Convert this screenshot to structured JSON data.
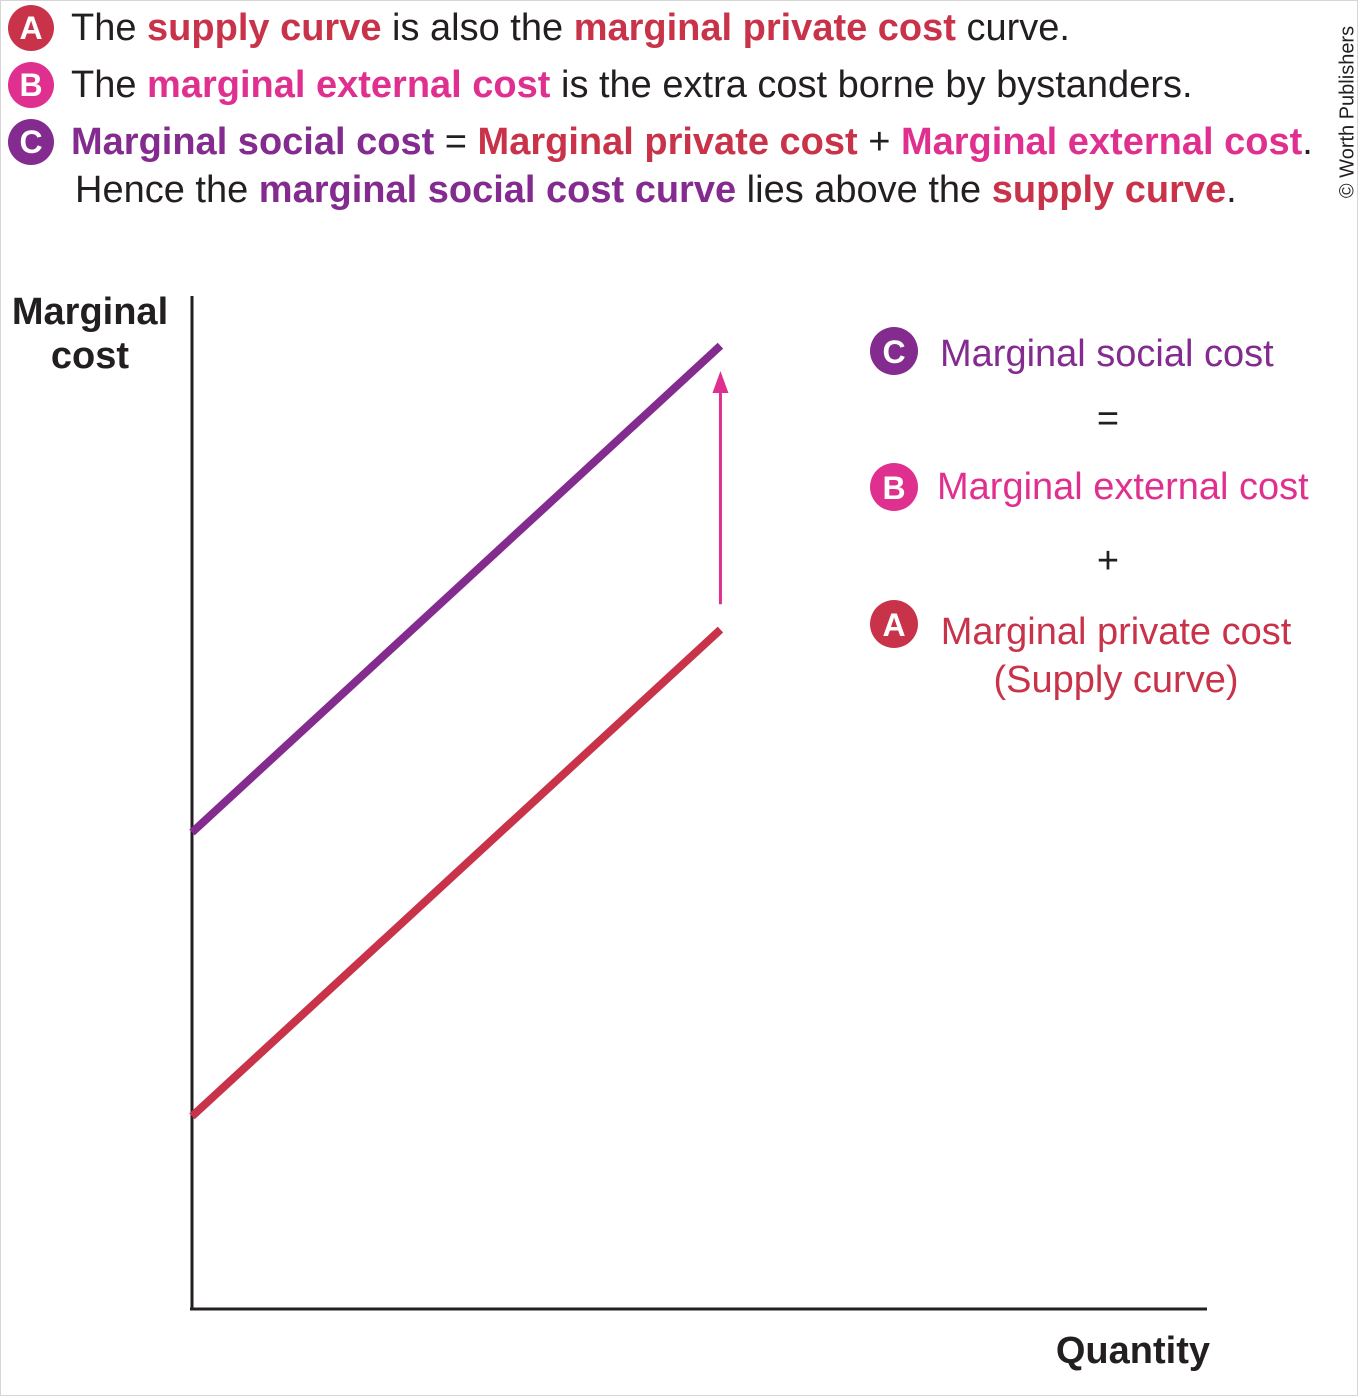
{
  "colors": {
    "a": "#c8334a",
    "b": "#e0308f",
    "c": "#832b8e",
    "text": "#231f20",
    "axis": "#231f20"
  },
  "notes": [
    {
      "badge": "A",
      "badge_color": "#c8334a",
      "parts": [
        {
          "text": "The ",
          "style": "plain"
        },
        {
          "text": "supply curve",
          "style": "a"
        },
        {
          "text": " is also the ",
          "style": "plain"
        },
        {
          "text": "marginal private cost",
          "style": "a"
        },
        {
          "text": " curve.",
          "style": "plain"
        }
      ]
    },
    {
      "badge": "B",
      "badge_color": "#e0308f",
      "parts": [
        {
          "text": "The ",
          "style": "plain"
        },
        {
          "text": "marginal external cost",
          "style": "b"
        },
        {
          "text": " is the extra cost borne by bystanders.",
          "style": "plain"
        }
      ]
    },
    {
      "badge": "C",
      "badge_color": "#832b8e",
      "parts": [
        {
          "text": "Marginal social cost",
          "style": "c"
        },
        {
          "text": " = ",
          "style": "plain"
        },
        {
          "text": "Marginal private cost",
          "style": "a"
        },
        {
          "text": " + ",
          "style": "plain"
        },
        {
          "text": "Marginal external cost",
          "style": "b"
        },
        {
          "text": ".",
          "style": "plain"
        }
      ]
    },
    {
      "badge": "",
      "badge_color": "",
      "parts": [
        {
          "text": "Hence the ",
          "style": "plain"
        },
        {
          "text": "marginal social cost curve",
          "style": "c"
        },
        {
          "text": " lies above the ",
          "style": "plain"
        },
        {
          "text": "supply curve",
          "style": "a"
        },
        {
          "text": ".",
          "style": "plain"
        }
      ]
    }
  ],
  "copyright": "© Worth Publishers",
  "chart_data": {
    "type": "line",
    "title": "",
    "ylabel": [
      "Marginal",
      "cost"
    ],
    "xlabel": "Quantity",
    "xlim": [
      0,
      100
    ],
    "ylim": [
      0,
      100
    ],
    "grid": false,
    "numeric_ticks": false,
    "series": [
      {
        "name": "Marginal social cost",
        "badge": "C",
        "color": "#832b8e",
        "x": [
          0,
          65
        ],
        "y": [
          47,
          95
        ]
      },
      {
        "name": "Marginal private cost",
        "sublabel": "(Supply curve)",
        "badge": "A",
        "color": "#c8334a",
        "x": [
          0,
          65
        ],
        "y": [
          19,
          67
        ]
      }
    ],
    "external_cost_arrow": {
      "label": "Marginal external cost",
      "badge": "B",
      "color": "#e0308f",
      "x": 65,
      "from": 69.5,
      "to": 92.5
    },
    "operators": [
      "=",
      "+"
    ]
  }
}
